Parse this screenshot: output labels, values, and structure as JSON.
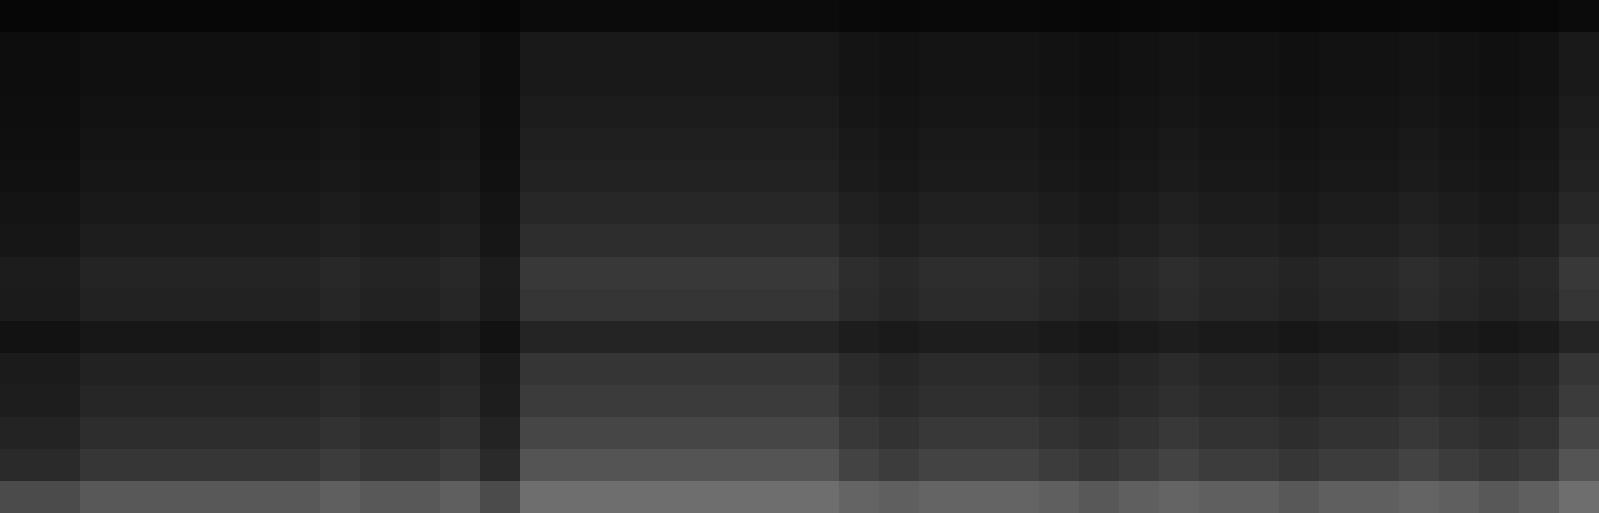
{
  "chart_data": {
    "type": "heatmap",
    "tick_labels": false,
    "xlim": [
      0,
      40
    ],
    "ylim": [
      0,
      16
    ],
    "zlim": [
      0,
      255
    ],
    "cells": [
      [
        6,
        6,
        7,
        7,
        7,
        7,
        7,
        7,
        8,
        7,
        7,
        8,
        6,
        11,
        11,
        11,
        11,
        11,
        11,
        11,
        11,
        9,
        8,
        9,
        9,
        9,
        8,
        7,
        8,
        9,
        8,
        8,
        7,
        8,
        8,
        9,
        8,
        7,
        8,
        11
      ],
      [
        13,
        13,
        16,
        16,
        16,
        16,
        16,
        16,
        18,
        16,
        16,
        18,
        13,
        25,
        25,
        25,
        25,
        25,
        25,
        25,
        25,
        20,
        18,
        20,
        20,
        20,
        18,
        16,
        18,
        20,
        18,
        18,
        16,
        18,
        18,
        20,
        18,
        16,
        18,
        25
      ],
      [
        13,
        13,
        16,
        16,
        16,
        16,
        16,
        16,
        18,
        16,
        16,
        18,
        13,
        25,
        25,
        25,
        25,
        25,
        25,
        25,
        25,
        20,
        18,
        20,
        20,
        20,
        18,
        16,
        18,
        20,
        18,
        18,
        16,
        18,
        18,
        20,
        18,
        16,
        18,
        25
      ],
      [
        14,
        14,
        18,
        18,
        18,
        18,
        18,
        18,
        20,
        18,
        18,
        20,
        14,
        28,
        28,
        28,
        28,
        28,
        28,
        28,
        28,
        22,
        20,
        22,
        22,
        22,
        20,
        18,
        20,
        22,
        20,
        20,
        18,
        20,
        20,
        22,
        20,
        18,
        20,
        28
      ],
      [
        15,
        15,
        20,
        20,
        20,
        20,
        20,
        20,
        22,
        20,
        20,
        22,
        15,
        31,
        31,
        31,
        31,
        31,
        31,
        31,
        31,
        25,
        22,
        25,
        25,
        25,
        22,
        20,
        22,
        25,
        22,
        22,
        20,
        22,
        22,
        25,
        22,
        20,
        22,
        31
      ],
      [
        17,
        17,
        22,
        22,
        22,
        22,
        22,
        22,
        24,
        22,
        22,
        24,
        17,
        34,
        34,
        34,
        34,
        34,
        34,
        34,
        34,
        27,
        24,
        27,
        27,
        27,
        24,
        22,
        24,
        27,
        24,
        24,
        22,
        24,
        24,
        27,
        24,
        22,
        24,
        34
      ],
      [
        20,
        20,
        25,
        25,
        25,
        25,
        25,
        25,
        28,
        25,
        25,
        28,
        20,
        39,
        39,
        39,
        39,
        39,
        39,
        39,
        39,
        32,
        28,
        32,
        32,
        32,
        28,
        25,
        28,
        32,
        28,
        28,
        25,
        28,
        28,
        32,
        28,
        25,
        28,
        39
      ],
      [
        22,
        22,
        29,
        29,
        29,
        29,
        29,
        29,
        32,
        29,
        29,
        32,
        22,
        45,
        45,
        45,
        45,
        45,
        45,
        45,
        45,
        36,
        32,
        36,
        36,
        36,
        32,
        29,
        32,
        36,
        32,
        32,
        29,
        32,
        32,
        36,
        32,
        29,
        32,
        45
      ],
      [
        28,
        28,
        36,
        36,
        36,
        36,
        36,
        36,
        40,
        36,
        36,
        40,
        28,
        56,
        56,
        56,
        56,
        56,
        56,
        56,
        56,
        45,
        40,
        45,
        45,
        45,
        40,
        36,
        40,
        45,
        40,
        40,
        36,
        40,
        40,
        45,
        40,
        36,
        40,
        56
      ],
      [
        27,
        27,
        34,
        34,
        34,
        34,
        34,
        34,
        38,
        34,
        34,
        38,
        27,
        53,
        53,
        53,
        53,
        53,
        53,
        53,
        53,
        43,
        38,
        43,
        43,
        43,
        38,
        34,
        38,
        43,
        38,
        38,
        34,
        38,
        38,
        43,
        38,
        34,
        38,
        53
      ],
      [
        18,
        18,
        23,
        23,
        23,
        23,
        23,
        23,
        26,
        23,
        23,
        26,
        18,
        36,
        36,
        36,
        36,
        36,
        36,
        36,
        36,
        29,
        26,
        29,
        29,
        29,
        26,
        23,
        26,
        29,
        26,
        26,
        23,
        26,
        26,
        29,
        26,
        23,
        26,
        36
      ],
      [
        27,
        27,
        34,
        34,
        34,
        34,
        34,
        34,
        38,
        34,
        34,
        38,
        27,
        53,
        53,
        53,
        53,
        53,
        53,
        53,
        53,
        43,
        38,
        43,
        43,
        43,
        38,
        34,
        38,
        43,
        38,
        38,
        34,
        38,
        38,
        43,
        38,
        34,
        38,
        53
      ],
      [
        29,
        29,
        38,
        38,
        38,
        38,
        38,
        38,
        42,
        38,
        38,
        42,
        29,
        59,
        59,
        59,
        59,
        59,
        59,
        59,
        59,
        47,
        42,
        47,
        47,
        47,
        42,
        38,
        42,
        47,
        42,
        42,
        38,
        42,
        42,
        47,
        42,
        38,
        42,
        59
      ],
      [
        35,
        35,
        45,
        45,
        45,
        45,
        45,
        45,
        50,
        45,
        45,
        50,
        35,
        70,
        70,
        70,
        70,
        70,
        70,
        70,
        70,
        56,
        50,
        56,
        56,
        56,
        50,
        45,
        50,
        56,
        50,
        50,
        45,
        50,
        50,
        56,
        50,
        45,
        50,
        70
      ],
      [
        42,
        42,
        54,
        54,
        54,
        54,
        54,
        54,
        60,
        54,
        54,
        60,
        42,
        84,
        84,
        84,
        84,
        84,
        84,
        84,
        84,
        67,
        60,
        67,
        67,
        67,
        60,
        54,
        60,
        67,
        60,
        60,
        54,
        60,
        60,
        67,
        60,
        54,
        60,
        84
      ],
      [
        75,
        75,
        88,
        88,
        88,
        88,
        88,
        88,
        95,
        88,
        88,
        95,
        75,
        110,
        110,
        110,
        110,
        110,
        110,
        110,
        110,
        100,
        95,
        100,
        100,
        100,
        95,
        88,
        95,
        100,
        95,
        95,
        88,
        95,
        95,
        100,
        95,
        88,
        95,
        110
      ]
    ]
  }
}
